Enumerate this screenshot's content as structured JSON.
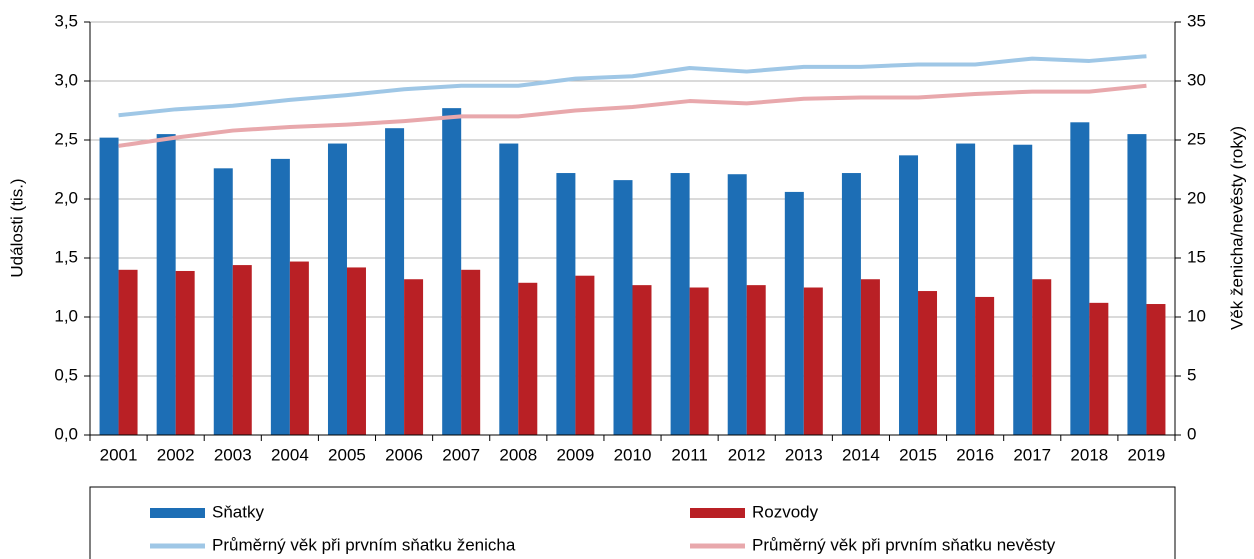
{
  "chart_data": {
    "type": "bar",
    "categories": [
      "2001",
      "2002",
      "2003",
      "2004",
      "2005",
      "2006",
      "2007",
      "2008",
      "2009",
      "2010",
      "2011",
      "2012",
      "2013",
      "2014",
      "2015",
      "2016",
      "2017",
      "2018",
      "2019"
    ],
    "series": [
      {
        "name": "Sňatky",
        "type": "bar",
        "color": "#1d6eb5",
        "values": [
          2.52,
          2.55,
          2.26,
          2.34,
          2.47,
          2.6,
          2.77,
          2.47,
          2.22,
          2.16,
          2.22,
          2.21,
          2.06,
          2.22,
          2.37,
          2.47,
          2.46,
          2.65,
          2.55
        ]
      },
      {
        "name": "Rozvody",
        "type": "bar",
        "color": "#b92025",
        "values": [
          1.4,
          1.39,
          1.44,
          1.47,
          1.42,
          1.32,
          1.4,
          1.29,
          1.35,
          1.27,
          1.25,
          1.27,
          1.25,
          1.32,
          1.22,
          1.17,
          1.32,
          1.12,
          1.11
        ]
      },
      {
        "name": "Průměrný věk při prvním sňatku ženicha",
        "type": "line",
        "axis": "y2",
        "color": "#9fc7e6",
        "values": [
          27.1,
          27.6,
          27.9,
          28.4,
          28.8,
          29.3,
          29.6,
          29.6,
          30.2,
          30.4,
          31.1,
          30.8,
          31.2,
          31.2,
          31.4,
          31.4,
          31.9,
          31.7,
          32.1
        ]
      },
      {
        "name": "Průměrný věk při prvním sňatku nevěsty",
        "type": "line",
        "axis": "y2",
        "color": "#e8a8ac",
        "values": [
          24.5,
          25.2,
          25.8,
          26.1,
          26.3,
          26.6,
          27.0,
          27.0,
          27.5,
          27.8,
          28.3,
          28.1,
          28.5,
          28.6,
          28.6,
          28.9,
          29.1,
          29.1,
          29.6
        ]
      }
    ],
    "ylabel": "Události (tis.)",
    "y2label": "Věk ženicha/nevěsty (roky)",
    "ylim": [
      0,
      3.5
    ],
    "yticks": [
      {
        "value": 0,
        "label": "0,0"
      },
      {
        "value": 0.5,
        "label": "0,5"
      },
      {
        "value": 1,
        "label": "1,0"
      },
      {
        "value": 1.5,
        "label": "1,5"
      },
      {
        "value": 2,
        "label": "2,0"
      },
      {
        "value": 2.5,
        "label": "2,5"
      },
      {
        "value": 3,
        "label": "3,0"
      },
      {
        "value": 3.5,
        "label": "3,5"
      }
    ],
    "y2lim": [
      0,
      35
    ],
    "y2ticks": [
      0,
      5,
      10,
      15,
      20,
      25,
      30,
      35
    ],
    "grid": true,
    "legend": "bottom"
  }
}
